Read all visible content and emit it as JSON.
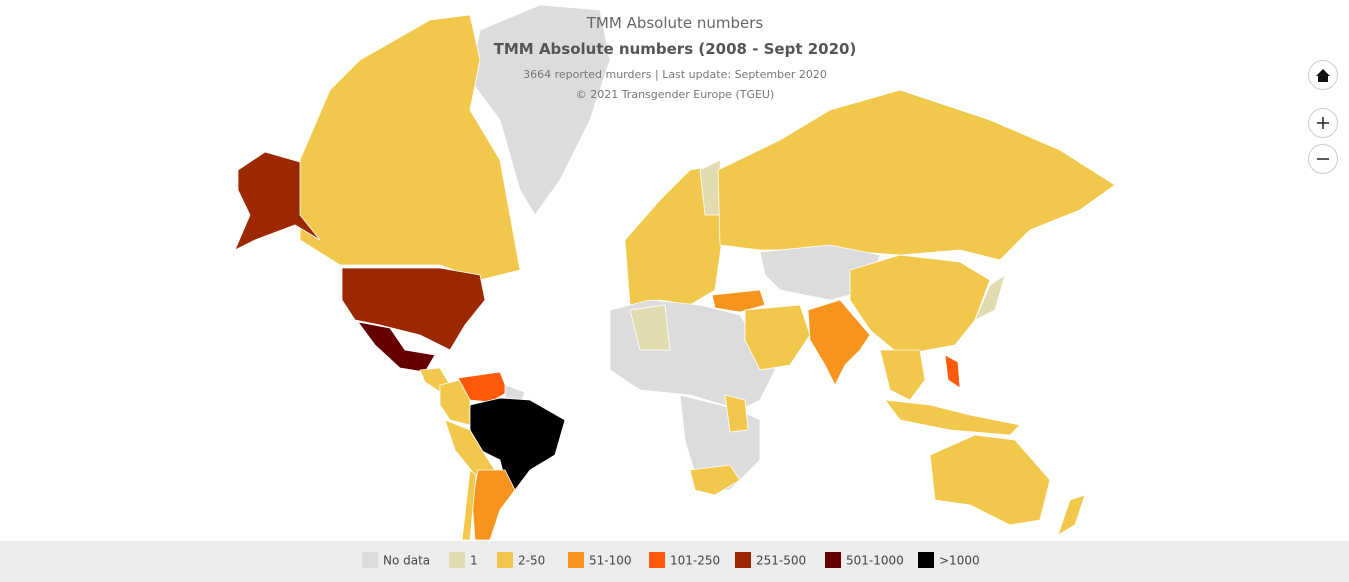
{
  "header": {
    "title": "TMM Absolute numbers",
    "subtitle": "TMM Absolute numbers (2008 - Sept 2020)",
    "note": "3664 reported murders | Last update: September 2020",
    "credit": "© 2021 Transgender Europe (TGEU)"
  },
  "legend": [
    {
      "label": "No data",
      "color": "#dcdcdc"
    },
    {
      "label": "1",
      "color": "#e0dcb0"
    },
    {
      "label": "2-50",
      "color": "#f1c84b"
    },
    {
      "label": "51-100",
      "color": "#f7941d"
    },
    {
      "label": "101-250",
      "color": "#ff5a0a"
    },
    {
      "label": "251-500",
      "color": "#9c2800"
    },
    {
      "label": "501-1000",
      "color": "#650000"
    },
    {
      "label": ">1000",
      "color": "#000000"
    }
  ]
}
